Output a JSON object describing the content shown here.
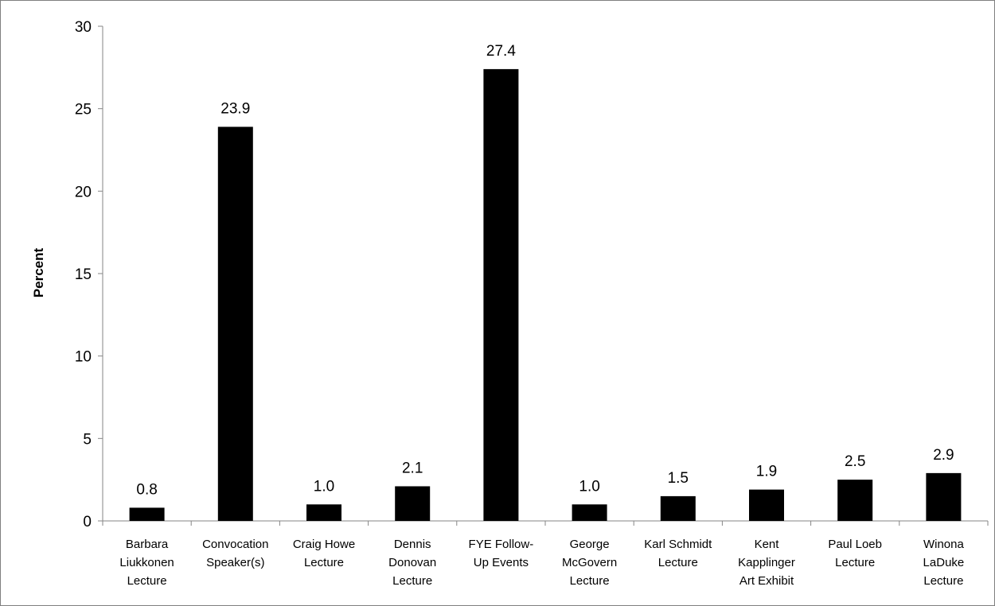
{
  "chart_data": {
    "type": "bar",
    "title": "",
    "xlabel": "",
    "ylabel": "Percent",
    "ylim": [
      0,
      30
    ],
    "yticks": [
      0,
      5,
      10,
      15,
      20,
      25,
      30
    ],
    "grid": false,
    "legend": "none",
    "bar_color": "#000000",
    "categories": [
      [
        "Barbara",
        "Liukkonen",
        "Lecture"
      ],
      [
        "Convocation",
        "Speaker(s)"
      ],
      [
        "Craig Howe",
        "Lecture"
      ],
      [
        "Dennis",
        "Donovan",
        "Lecture"
      ],
      [
        "FYE Follow-",
        "Up Events"
      ],
      [
        "George",
        "McGovern",
        "Lecture"
      ],
      [
        "Karl Schmidt",
        "Lecture"
      ],
      [
        "Kent",
        "Kapplinger",
        "Art Exhibit"
      ],
      [
        "Paul Loeb",
        "Lecture"
      ],
      [
        "Winona",
        "LaDuke",
        "Lecture"
      ]
    ],
    "values": [
      0.8,
      23.9,
      1.0,
      2.1,
      27.4,
      1.0,
      1.5,
      1.9,
      2.5,
      2.9
    ],
    "data_labels": [
      "0.8",
      "23.9",
      "1.0",
      "2.1",
      "27.4",
      "1.0",
      "1.5",
      "1.9",
      "2.5",
      "2.9"
    ]
  }
}
